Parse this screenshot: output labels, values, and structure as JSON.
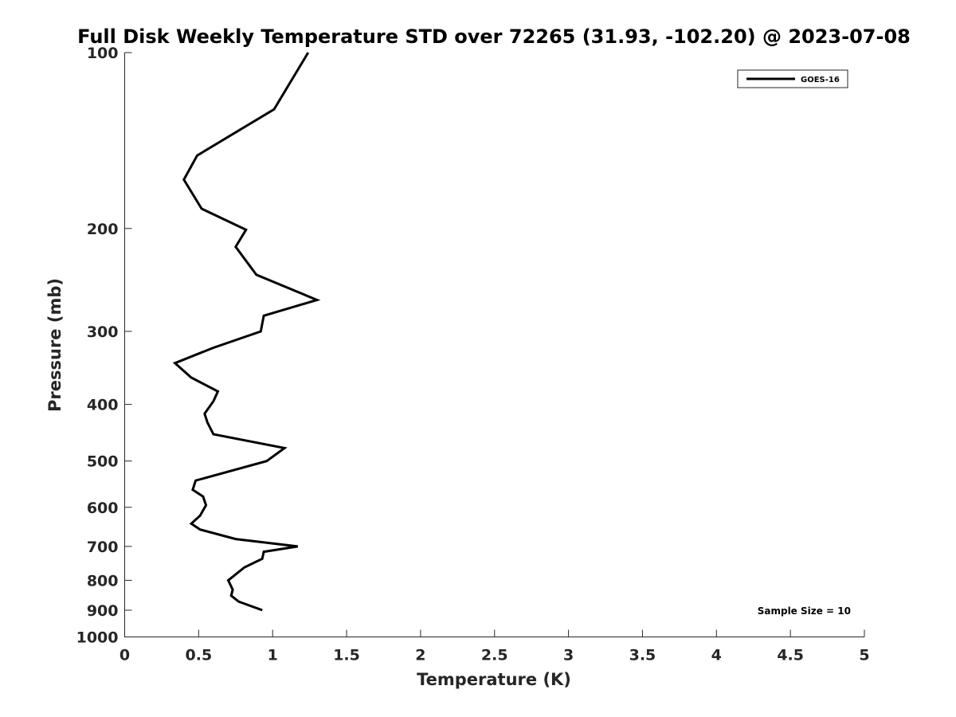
{
  "chart_data": {
    "type": "line",
    "title": "Full Disk Weekly Temperature STD over 72265 (31.93, -102.20) @ 2023-07-08",
    "xlabel": "Temperature (K)",
    "ylabel": "Pressure (mb)",
    "xlim": [
      0,
      5
    ],
    "ylim": [
      1000,
      100
    ],
    "y_scale": "log",
    "y_reversed": true,
    "xticks": [
      "0",
      "0.5",
      "1",
      "1.5",
      "2",
      "2.5",
      "3",
      "3.5",
      "4",
      "4.5",
      "5"
    ],
    "xtick_values": [
      0,
      0.5,
      1,
      1.5,
      2,
      2.5,
      3,
      3.5,
      4,
      4.5,
      5
    ],
    "yticks": [
      "100",
      "200",
      "300",
      "400",
      "500",
      "600",
      "700",
      "800",
      "900",
      "1000"
    ],
    "ytick_values": [
      100,
      200,
      300,
      400,
      500,
      600,
      700,
      800,
      900,
      1000
    ],
    "grid": false,
    "legend_position": "top-right",
    "series": [
      {
        "name": "GOES-16",
        "color": "#000000",
        "points": [
          [
            1.24,
            100
          ],
          [
            1.01,
            125
          ],
          [
            0.49,
            150
          ],
          [
            0.4,
            165
          ],
          [
            0.52,
            185
          ],
          [
            0.82,
            201
          ],
          [
            0.75,
            215
          ],
          [
            0.89,
            240
          ],
          [
            1.3,
            265
          ],
          [
            0.94,
            282
          ],
          [
            0.92,
            300
          ],
          [
            0.6,
            320
          ],
          [
            0.34,
            340
          ],
          [
            0.45,
            360
          ],
          [
            0.63,
            380
          ],
          [
            0.6,
            395
          ],
          [
            0.54,
            415
          ],
          [
            0.56,
            430
          ],
          [
            0.6,
            450
          ],
          [
            1.08,
            475
          ],
          [
            0.96,
            500
          ],
          [
            0.48,
            540
          ],
          [
            0.46,
            560
          ],
          [
            0.53,
            575
          ],
          [
            0.55,
            595
          ],
          [
            0.51,
            620
          ],
          [
            0.45,
            640
          ],
          [
            0.51,
            655
          ],
          [
            0.75,
            680
          ],
          [
            1.17,
            700
          ],
          [
            0.94,
            715
          ],
          [
            0.93,
            735
          ],
          [
            0.81,
            760
          ],
          [
            0.7,
            800
          ],
          [
            0.73,
            830
          ],
          [
            0.72,
            850
          ],
          [
            0.77,
            870
          ],
          [
            0.93,
            900
          ]
        ]
      }
    ],
    "annotations": [
      "Sample Size = 10"
    ]
  }
}
